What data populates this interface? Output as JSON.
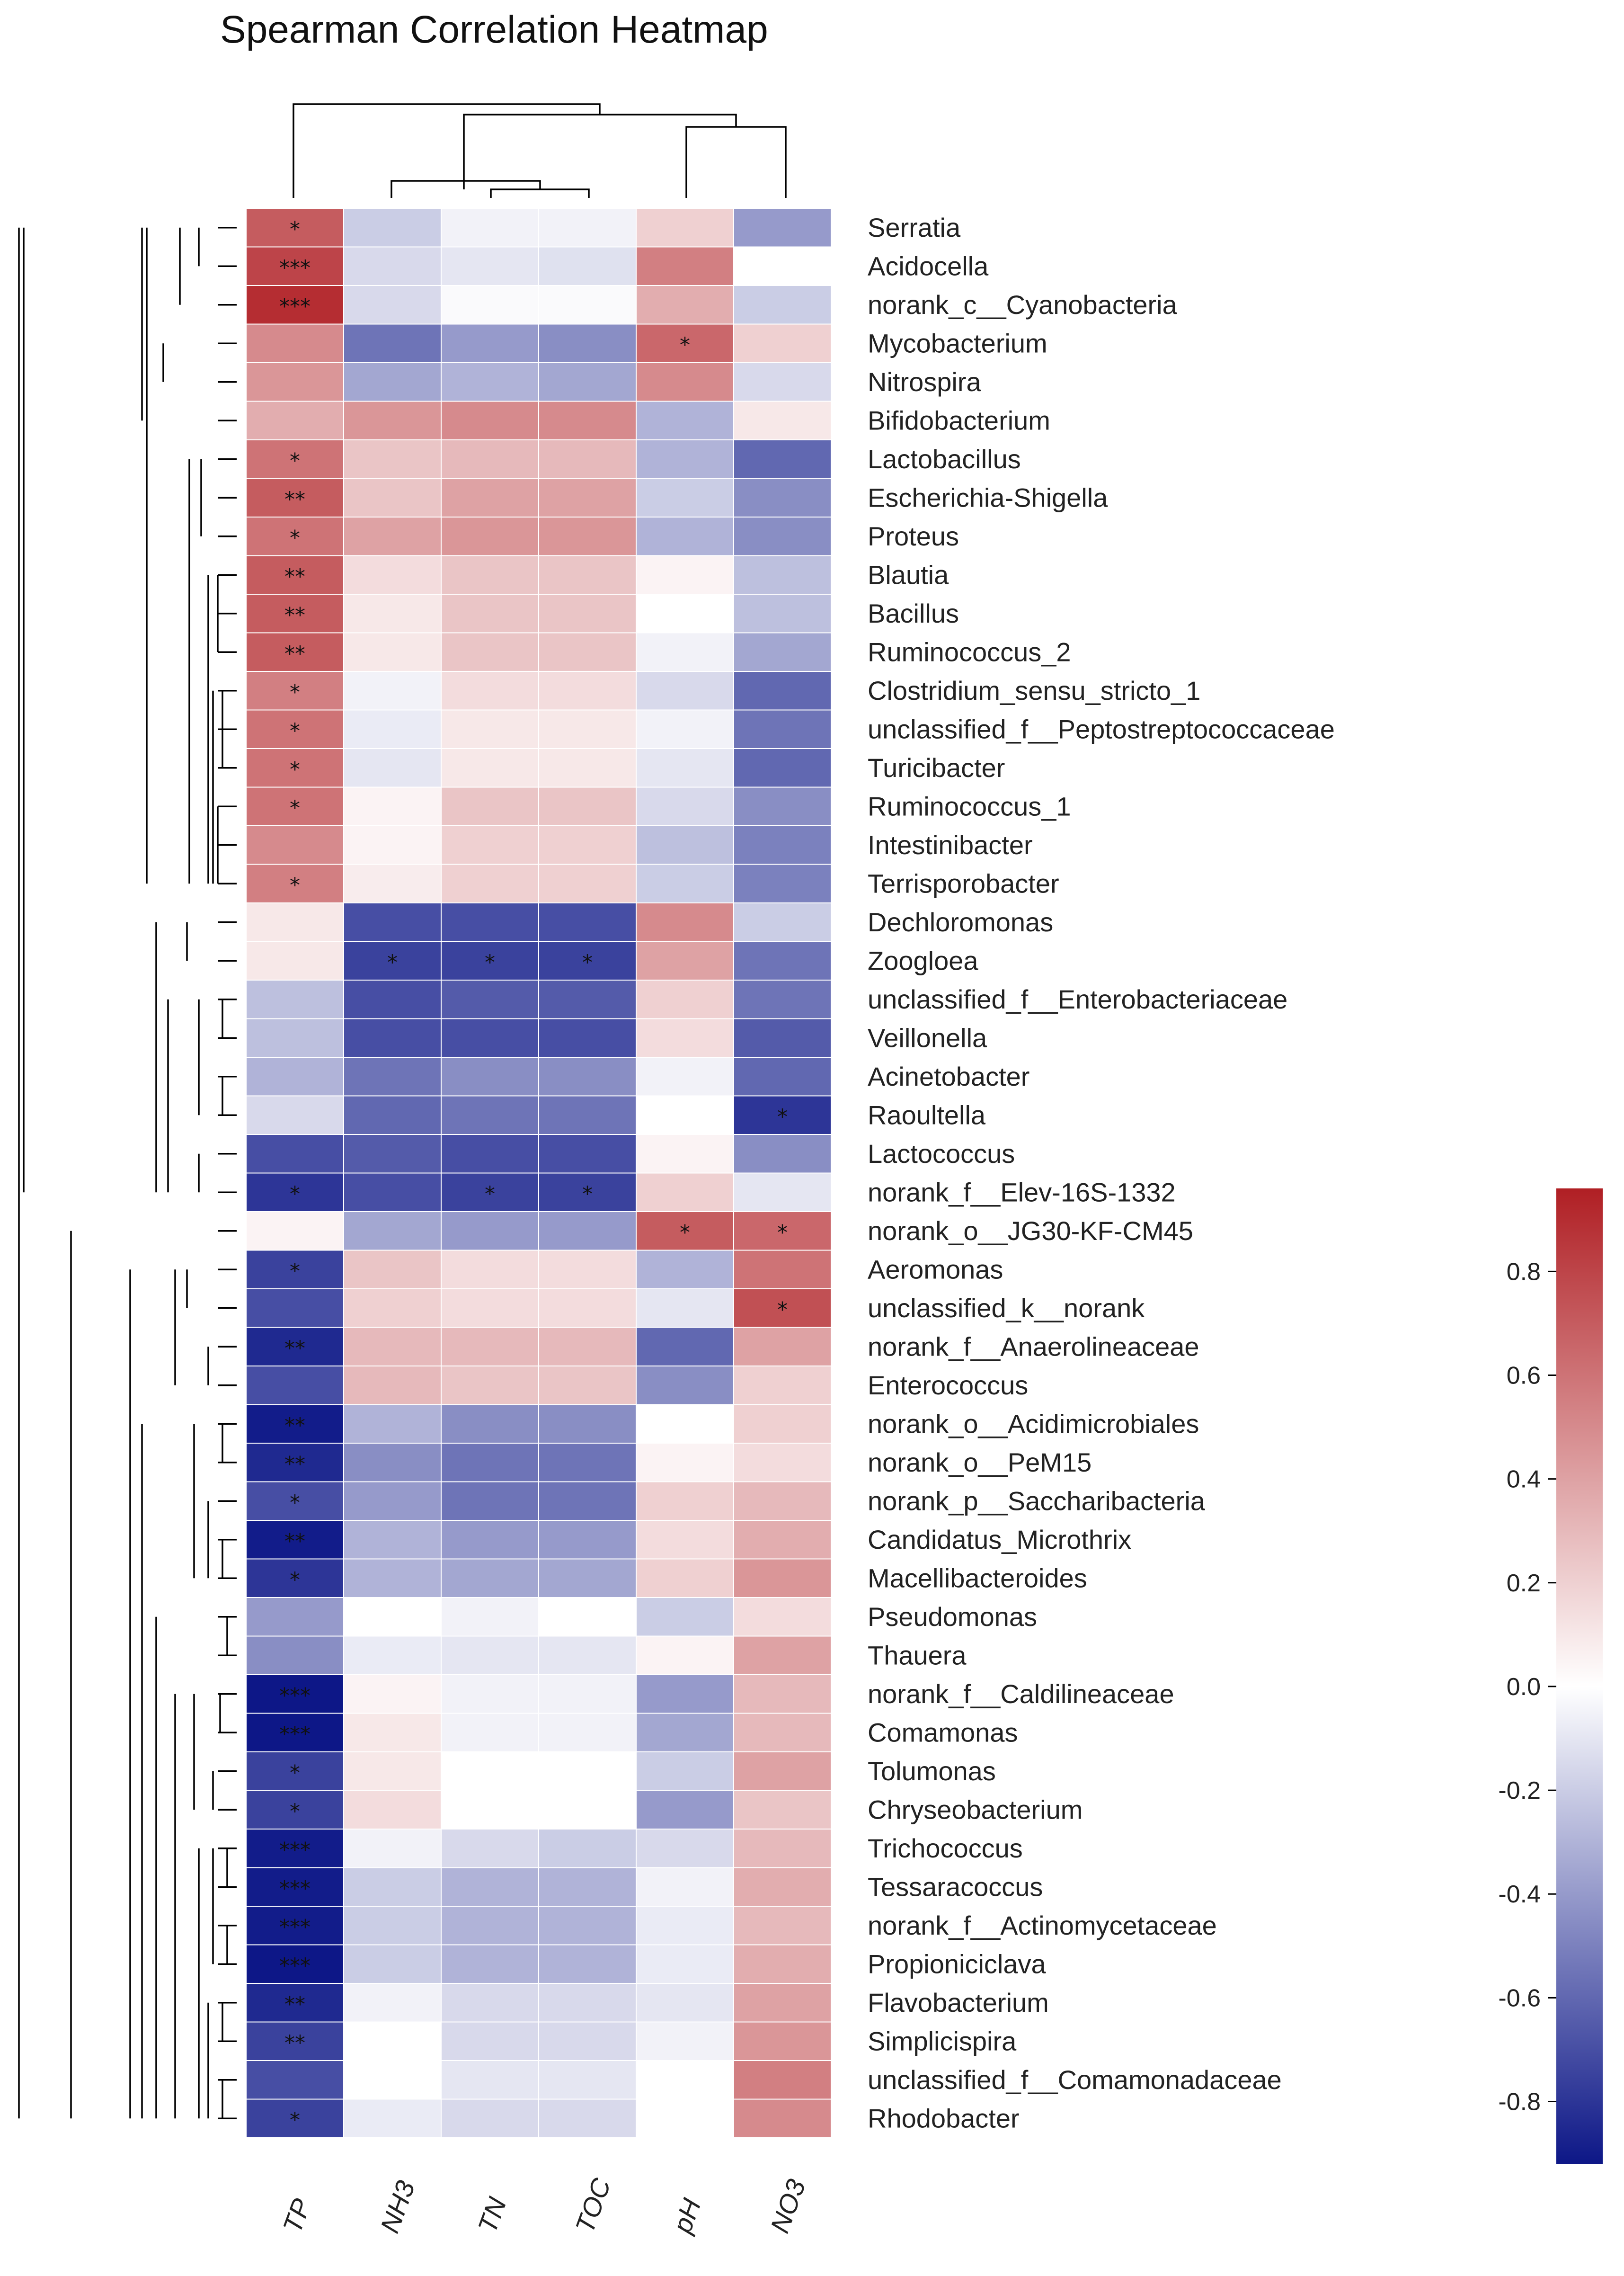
{
  "chart_data": {
    "type": "heatmap",
    "title": "Spearman Correlation Heatmap",
    "columns": [
      "TP",
      "NH3",
      "TN",
      "TOC",
      "pH",
      "NO3"
    ],
    "rows": [
      "Serratia",
      "Acidocella",
      "norank_c__Cyanobacteria",
      "Mycobacterium",
      "Nitrospira",
      "Bifidobacterium",
      "Lactobacillus",
      "Escherichia-Shigella",
      "Proteus",
      "Blautia",
      "Bacillus",
      "Ruminococcus_2",
      "Clostridium_sensu_stricto_1",
      "unclassified_f__Peptostreptococcaceae",
      "Turicibacter",
      "Ruminococcus_1",
      "Intestinibacter",
      "Terrisporobacter",
      "Dechloromonas",
      "Zoogloea",
      "unclassified_f__Enterobacteriaceae",
      "Veillonella",
      "Acinetobacter",
      "Raoultella",
      "Lactococcus",
      "norank_f__Elev-16S-1332",
      "norank_o__JG30-KF-CM45",
      "Aeromonas",
      "unclassified_k__norank",
      "norank_f__Anaerolineaceae",
      "Enterococcus",
      "norank_o__Acidimicrobiales",
      "norank_o__PeM15",
      "norank_p__Saccharibacteria",
      "Candidatus_Microthrix",
      "Macellibacteroides",
      "Pseudomonas",
      "Thauera",
      "norank_f__Caldilineaceae",
      "Comamonas",
      "Tolumonas",
      "Chryseobacterium",
      "Trichococcus",
      "Tessaracoccus",
      "norank_f__Actinomycetaceae",
      "Propioniciclava",
      "Flavobacterium",
      "Simplicispira",
      "unclassified_f__Comamonadaceae",
      "Rhodobacter"
    ],
    "values": [
      [
        0.7,
        -0.2,
        -0.05,
        -0.05,
        0.2,
        -0.4
      ],
      [
        0.8,
        -0.15,
        -0.1,
        -0.12,
        0.55,
        0.0
      ],
      [
        0.9,
        -0.15,
        -0.02,
        -0.02,
        0.35,
        -0.2
      ],
      [
        0.5,
        -0.55,
        -0.4,
        -0.45,
        0.65,
        0.2
      ],
      [
        0.45,
        -0.35,
        -0.3,
        -0.35,
        0.5,
        -0.15
      ],
      [
        0.35,
        0.45,
        0.5,
        0.5,
        -0.3,
        0.1
      ],
      [
        0.6,
        0.25,
        0.3,
        0.3,
        -0.3,
        -0.6
      ],
      [
        0.7,
        0.25,
        0.4,
        0.4,
        -0.2,
        -0.45
      ],
      [
        0.6,
        0.4,
        0.45,
        0.45,
        -0.3,
        -0.45
      ],
      [
        0.7,
        0.15,
        0.25,
        0.25,
        0.05,
        -0.25
      ],
      [
        0.7,
        0.1,
        0.25,
        0.25,
        0.0,
        -0.25
      ],
      [
        0.7,
        0.1,
        0.25,
        0.25,
        -0.05,
        -0.35
      ],
      [
        0.55,
        -0.05,
        0.15,
        0.15,
        -0.15,
        -0.6
      ],
      [
        0.6,
        -0.08,
        0.1,
        0.1,
        -0.05,
        -0.55
      ],
      [
        0.6,
        -0.1,
        0.1,
        0.1,
        -0.1,
        -0.6
      ],
      [
        0.6,
        0.05,
        0.25,
        0.25,
        -0.15,
        -0.45
      ],
      [
        0.5,
        0.05,
        0.2,
        0.2,
        -0.25,
        -0.5
      ],
      [
        0.55,
        0.08,
        0.2,
        0.2,
        -0.2,
        -0.5
      ],
      [
        0.1,
        -0.7,
        -0.7,
        -0.7,
        0.5,
        -0.2
      ],
      [
        0.1,
        -0.75,
        -0.75,
        -0.75,
        0.4,
        -0.55
      ],
      [
        -0.25,
        -0.7,
        -0.65,
        -0.65,
        0.2,
        -0.55
      ],
      [
        -0.25,
        -0.7,
        -0.7,
        -0.7,
        0.15,
        -0.65
      ],
      [
        -0.3,
        -0.55,
        -0.45,
        -0.45,
        -0.05,
        -0.6
      ],
      [
        -0.15,
        -0.6,
        -0.55,
        -0.55,
        0.0,
        -0.8
      ],
      [
        -0.7,
        -0.65,
        -0.7,
        -0.7,
        0.05,
        -0.45
      ],
      [
        -0.8,
        -0.7,
        -0.75,
        -0.75,
        0.2,
        -0.1
      ],
      [
        0.05,
        -0.35,
        -0.4,
        -0.4,
        0.7,
        0.65
      ],
      [
        -0.75,
        0.25,
        0.15,
        0.15,
        -0.3,
        0.6
      ],
      [
        -0.7,
        0.2,
        0.15,
        0.15,
        -0.1,
        0.75
      ],
      [
        -0.85,
        0.3,
        0.3,
        0.3,
        -0.6,
        0.4
      ],
      [
        -0.7,
        0.3,
        0.25,
        0.25,
        -0.45,
        0.2
      ],
      [
        -0.9,
        -0.3,
        -0.45,
        -0.45,
        0.0,
        0.2
      ],
      [
        -0.85,
        -0.45,
        -0.55,
        -0.55,
        0.05,
        0.15
      ],
      [
        -0.7,
        -0.4,
        -0.55,
        -0.55,
        0.2,
        0.3
      ],
      [
        -0.9,
        -0.3,
        -0.4,
        -0.4,
        0.15,
        0.35
      ],
      [
        -0.8,
        -0.3,
        -0.35,
        -0.35,
        0.2,
        0.45
      ],
      [
        -0.4,
        0.0,
        -0.05,
        0.0,
        -0.2,
        0.15
      ],
      [
        -0.45,
        -0.08,
        -0.1,
        -0.1,
        0.05,
        0.4
      ],
      [
        -0.95,
        0.05,
        -0.05,
        -0.05,
        -0.4,
        0.3
      ],
      [
        -0.95,
        0.1,
        -0.05,
        -0.05,
        -0.35,
        0.3
      ],
      [
        -0.75,
        0.1,
        0.0,
        0.0,
        -0.2,
        0.4
      ],
      [
        -0.75,
        0.15,
        0.0,
        0.0,
        -0.4,
        0.25
      ],
      [
        -0.9,
        -0.05,
        -0.15,
        -0.2,
        -0.15,
        0.3
      ],
      [
        -0.9,
        -0.2,
        -0.3,
        -0.3,
        -0.05,
        0.35
      ],
      [
        -0.9,
        -0.2,
        -0.3,
        -0.3,
        -0.08,
        0.3
      ],
      [
        -0.95,
        -0.2,
        -0.3,
        -0.3,
        -0.08,
        0.35
      ],
      [
        -0.85,
        -0.05,
        -0.15,
        -0.15,
        -0.1,
        0.4
      ],
      [
        -0.75,
        0.0,
        -0.15,
        -0.15,
        -0.05,
        0.45
      ],
      [
        -0.7,
        0.0,
        -0.1,
        -0.1,
        0.0,
        0.55
      ],
      [
        -0.75,
        -0.08,
        -0.15,
        -0.15,
        0.0,
        0.5
      ]
    ],
    "significance": [
      [
        "*",
        "",
        "",
        "",
        "",
        ""
      ],
      [
        "***",
        "",
        "",
        "",
        "",
        ""
      ],
      [
        "***",
        "",
        "",
        "",
        "",
        ""
      ],
      [
        "",
        "",
        "",
        "",
        "*",
        ""
      ],
      [
        "",
        "",
        "",
        "",
        "",
        ""
      ],
      [
        "",
        "",
        "",
        "",
        "",
        ""
      ],
      [
        "*",
        "",
        "",
        "",
        "",
        ""
      ],
      [
        "**",
        "",
        "",
        "",
        "",
        ""
      ],
      [
        "*",
        "",
        "",
        "",
        "",
        ""
      ],
      [
        "**",
        "",
        "",
        "",
        "",
        ""
      ],
      [
        "**",
        "",
        "",
        "",
        "",
        ""
      ],
      [
        "**",
        "",
        "",
        "",
        "",
        ""
      ],
      [
        "*",
        "",
        "",
        "",
        "",
        ""
      ],
      [
        "*",
        "",
        "",
        "",
        "",
        ""
      ],
      [
        "*",
        "",
        "",
        "",
        "",
        ""
      ],
      [
        "*",
        "",
        "",
        "",
        "",
        ""
      ],
      [
        "",
        "",
        "",
        "",
        "",
        ""
      ],
      [
        "*",
        "",
        "",
        "",
        "",
        ""
      ],
      [
        "",
        "",
        "",
        "",
        "",
        ""
      ],
      [
        "",
        "*",
        "*",
        "*",
        "",
        ""
      ],
      [
        "",
        "",
        "",
        "",
        "",
        ""
      ],
      [
        "",
        "",
        "",
        "",
        "",
        ""
      ],
      [
        "",
        "",
        "",
        "",
        "",
        ""
      ],
      [
        "",
        "",
        "",
        "",
        "",
        "*"
      ],
      [
        "",
        "",
        "",
        "",
        "",
        ""
      ],
      [
        "*",
        "",
        "*",
        "*",
        "",
        ""
      ],
      [
        "",
        "",
        "",
        "",
        "*",
        "*"
      ],
      [
        "*",
        "",
        "",
        "",
        "",
        ""
      ],
      [
        "",
        "",
        "",
        "",
        "",
        "*"
      ],
      [
        "**",
        "",
        "",
        "",
        "",
        ""
      ],
      [
        "",
        "",
        "",
        "",
        "",
        ""
      ],
      [
        "**",
        "",
        "",
        "",
        "",
        ""
      ],
      [
        "**",
        "",
        "",
        "",
        "",
        ""
      ],
      [
        "*",
        "",
        "",
        "",
        "",
        ""
      ],
      [
        "**",
        "",
        "",
        "",
        "",
        ""
      ],
      [
        "*",
        "",
        "",
        "",
        "",
        ""
      ],
      [
        "",
        "",
        "",
        "",
        "",
        ""
      ],
      [
        "",
        "",
        "",
        "",
        "",
        ""
      ],
      [
        "***",
        "",
        "",
        "",
        "",
        ""
      ],
      [
        "***",
        "",
        "",
        "",
        "",
        ""
      ],
      [
        "*",
        "",
        "",
        "",
        "",
        ""
      ],
      [
        "*",
        "",
        "",
        "",
        "",
        ""
      ],
      [
        "***",
        "",
        "",
        "",
        "",
        ""
      ],
      [
        "***",
        "",
        "",
        "",
        "",
        ""
      ],
      [
        "***",
        "",
        "",
        "",
        "",
        ""
      ],
      [
        "***",
        "",
        "",
        "",
        "",
        ""
      ],
      [
        "**",
        "",
        "",
        "",
        "",
        ""
      ],
      [
        "**",
        "",
        "",
        "",
        "",
        ""
      ],
      [
        "",
        "",
        "",
        "",
        "",
        ""
      ],
      [
        "*",
        "",
        "",
        "",
        "",
        ""
      ]
    ],
    "colorbar": {
      "range": [
        -0.92,
        0.96
      ],
      "ticks": [
        "0.8",
        "0.6",
        "0.4",
        "0.2",
        "0.0",
        "-0.2",
        "-0.4",
        "-0.6",
        "-0.8"
      ],
      "tick_values": [
        0.8,
        0.6,
        0.4,
        0.2,
        0.0,
        -0.2,
        -0.4,
        -0.6,
        -0.8
      ],
      "colors": {
        "low": "#0d1787",
        "mid": "#ffffff",
        "high": "#b01f24"
      }
    }
  }
}
